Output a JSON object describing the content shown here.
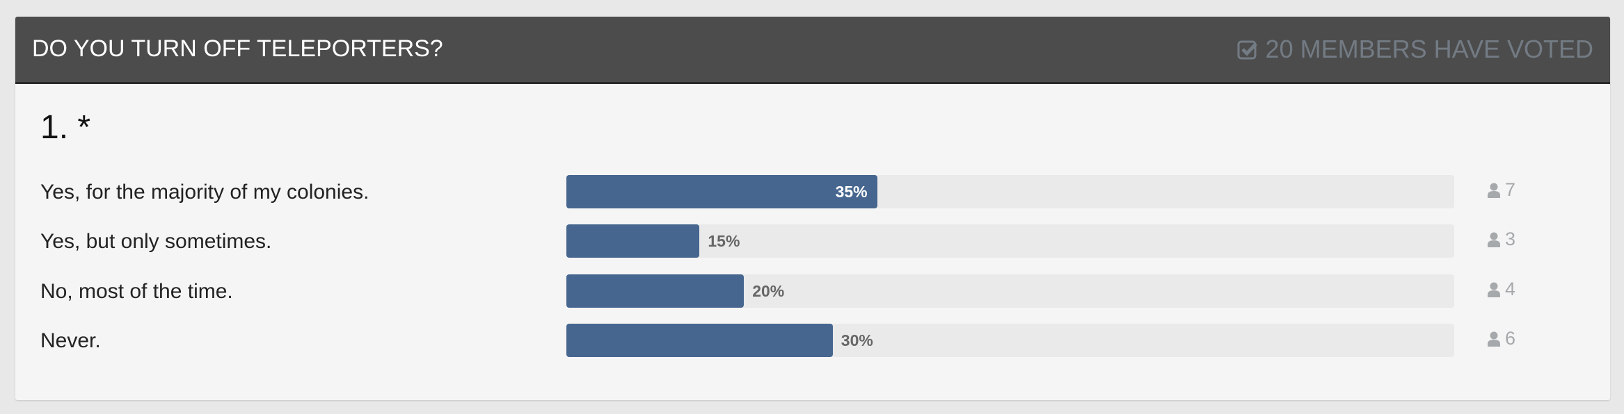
{
  "poll": {
    "title": "DO YOU TURN OFF TELEPORTERS?",
    "voted_text": "20 MEMBERS HAVE VOTED",
    "question_number": "1. *",
    "bar_color": "#46668f",
    "options": [
      {
        "label": "Yes, for the majority of my colonies.",
        "percent": 35,
        "percent_label": "35%",
        "votes": "7"
      },
      {
        "label": "Yes, but only sometimes.",
        "percent": 15,
        "percent_label": "15%",
        "votes": "3"
      },
      {
        "label": "No, most of the time.",
        "percent": 20,
        "percent_label": "20%",
        "votes": "4"
      },
      {
        "label": "Never.",
        "percent": 30,
        "percent_label": "30%",
        "votes": "6"
      }
    ]
  }
}
